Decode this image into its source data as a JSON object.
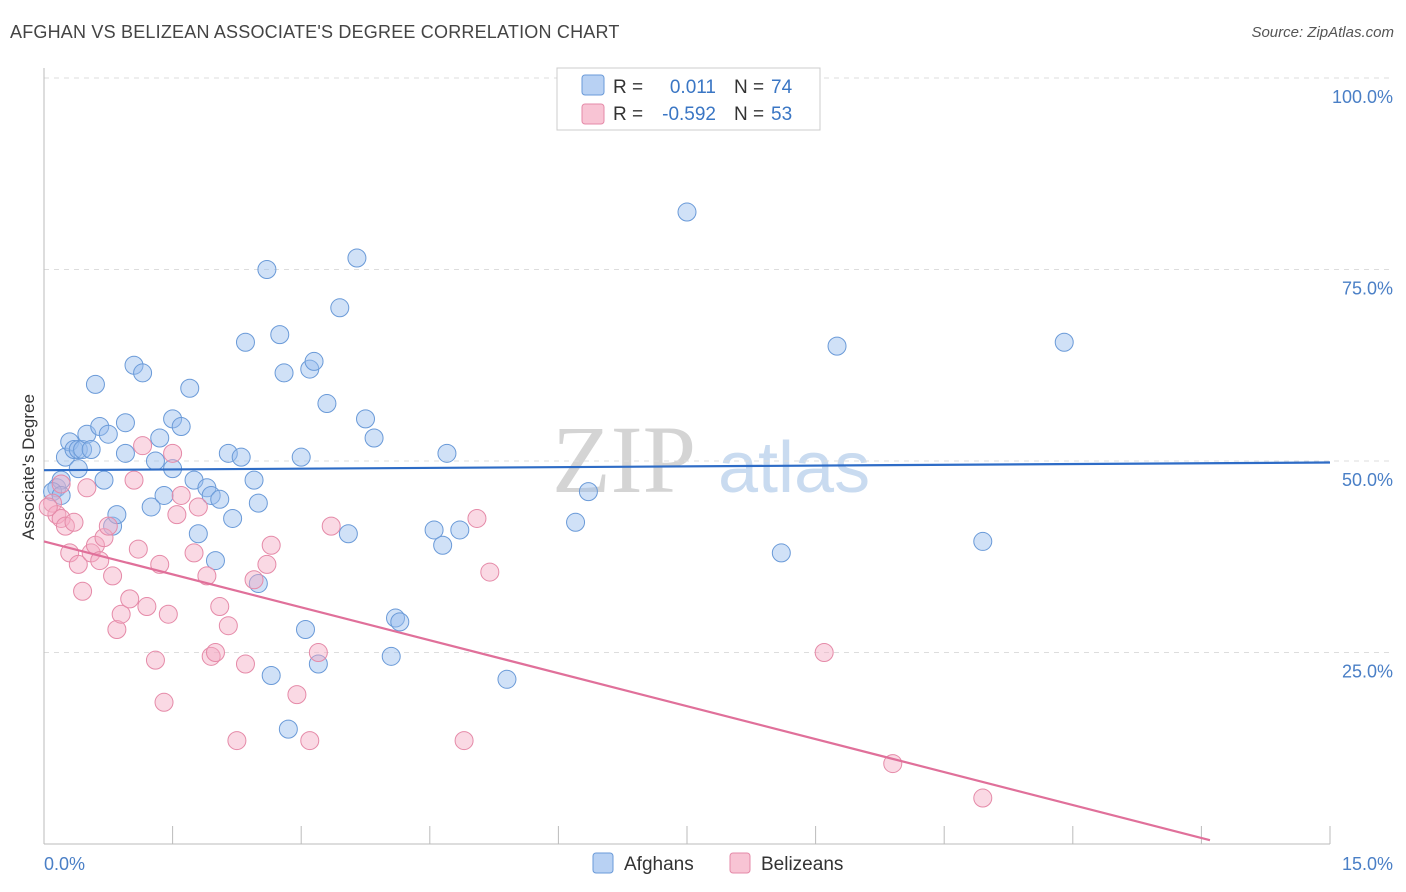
{
  "title": "AFGHAN VS BELIZEAN ASSOCIATE'S DEGREE CORRELATION CHART",
  "source": "Source: ZipAtlas.com",
  "watermark": {
    "part1": "ZIP",
    "part2": "atlas"
  },
  "legend_top": [
    {
      "r_label": "R =",
      "r_value": "0.011",
      "n_label": "N =",
      "n_value": "74",
      "fill": "#b8d1f3",
      "stroke": "#6a9ad8"
    },
    {
      "r_label": "R =",
      "r_value": "-0.592",
      "n_label": "N =",
      "n_value": "53",
      "fill": "#f8c4d4",
      "stroke": "#e58aa8"
    }
  ],
  "chart_data": {
    "type": "scatter",
    "title": "AFGHAN VS BELIZEAN ASSOCIATE'S DEGREE CORRELATION CHART",
    "xlabel": "",
    "ylabel": "Associate's Degree",
    "xlim": [
      0,
      15
    ],
    "ylim": [
      0,
      100
    ],
    "x_tick_labels": [
      {
        "value": 0,
        "label": "0.0%"
      },
      {
        "value": 15,
        "label": "15.0%"
      }
    ],
    "y_tick_labels": [
      {
        "value": 25,
        "label": "25.0%"
      },
      {
        "value": 50,
        "label": "50.0%"
      },
      {
        "value": 75,
        "label": "75.0%"
      },
      {
        "value": 100,
        "label": "100.0%"
      }
    ],
    "legend_position": "bottom-center",
    "series": [
      {
        "name": "Afghans",
        "color": "#6a9ad8",
        "fill": "rgba(150,188,238,0.45)",
        "trend": {
          "x": [
            0,
            15
          ],
          "y": [
            48.8,
            49.8
          ],
          "color": "#2e6cc6"
        },
        "points": [
          [
            0.15,
            46.5
          ],
          [
            0.2,
            47.5
          ],
          [
            0.25,
            50.5
          ],
          [
            0.3,
            52.5
          ],
          [
            0.35,
            51.5
          ],
          [
            0.4,
            49
          ],
          [
            0.4,
            51.5
          ],
          [
            0.45,
            51.5
          ],
          [
            0.5,
            53.5
          ],
          [
            0.55,
            51.5
          ],
          [
            0.6,
            60
          ],
          [
            0.65,
            54.5
          ],
          [
            0.7,
            47.5
          ],
          [
            0.75,
            53.5
          ],
          [
            0.8,
            41.5
          ],
          [
            0.85,
            43
          ],
          [
            0.95,
            55
          ],
          [
            0.95,
            51
          ],
          [
            1.05,
            62.5
          ],
          [
            1.15,
            61.5
          ],
          [
            1.25,
            44
          ],
          [
            1.3,
            50
          ],
          [
            1.35,
            53
          ],
          [
            1.4,
            45.5
          ],
          [
            1.5,
            49
          ],
          [
            1.5,
            55.5
          ],
          [
            1.6,
            54.5
          ],
          [
            1.7,
            59.5
          ],
          [
            1.75,
            47.5
          ],
          [
            1.8,
            40.5
          ],
          [
            1.9,
            46.5
          ],
          [
            1.95,
            45.5
          ],
          [
            2.0,
            37
          ],
          [
            2.05,
            45
          ],
          [
            2.15,
            51
          ],
          [
            2.2,
            42.5
          ],
          [
            2.3,
            50.5
          ],
          [
            2.35,
            65.5
          ],
          [
            2.45,
            47.5
          ],
          [
            2.5,
            44.5
          ],
          [
            2.5,
            34
          ],
          [
            2.6,
            75
          ],
          [
            2.65,
            22
          ],
          [
            2.75,
            66.5
          ],
          [
            2.8,
            61.5
          ],
          [
            2.85,
            15
          ],
          [
            3.0,
            50.5
          ],
          [
            3.05,
            28
          ],
          [
            3.1,
            62
          ],
          [
            3.15,
            63
          ],
          [
            3.2,
            23.5
          ],
          [
            3.3,
            57.5
          ],
          [
            3.45,
            70
          ],
          [
            3.55,
            40.5
          ],
          [
            3.65,
            76.5
          ],
          [
            3.75,
            55.5
          ],
          [
            3.85,
            53
          ],
          [
            4.05,
            24.5
          ],
          [
            4.1,
            29.5
          ],
          [
            4.15,
            29
          ],
          [
            4.55,
            41
          ],
          [
            4.65,
            39
          ],
          [
            4.7,
            51
          ],
          [
            4.85,
            41
          ],
          [
            5.4,
            21.5
          ],
          [
            6.2,
            42
          ],
          [
            6.35,
            46
          ],
          [
            7.5,
            82.5
          ],
          [
            8.6,
            38
          ],
          [
            9.25,
            65
          ],
          [
            10.95,
            39.5
          ],
          [
            11.9,
            65.5
          ],
          [
            0.1,
            46
          ],
          [
            0.2,
            45.5
          ]
        ]
      },
      {
        "name": "Belizeans",
        "color": "#e58aa8",
        "fill": "rgba(244,170,196,0.45)",
        "trend": {
          "x": [
            0,
            13.6
          ],
          "y": [
            39.5,
            0.5
          ],
          "color": "#e0709a"
        },
        "points": [
          [
            0.1,
            44.5
          ],
          [
            0.15,
            43
          ],
          [
            0.2,
            42.5
          ],
          [
            0.25,
            41.5
          ],
          [
            0.3,
            38
          ],
          [
            0.35,
            42
          ],
          [
            0.4,
            36.5
          ],
          [
            0.45,
            33
          ],
          [
            0.5,
            46.5
          ],
          [
            0.55,
            38
          ],
          [
            0.6,
            39
          ],
          [
            0.65,
            37
          ],
          [
            0.7,
            40
          ],
          [
            0.75,
            41.5
          ],
          [
            0.8,
            35
          ],
          [
            0.85,
            28
          ],
          [
            0.9,
            30
          ],
          [
            1.0,
            32
          ],
          [
            1.05,
            47.5
          ],
          [
            1.1,
            38.5
          ],
          [
            1.15,
            52
          ],
          [
            1.2,
            31
          ],
          [
            1.3,
            24
          ],
          [
            1.35,
            36.5
          ],
          [
            1.4,
            18.5
          ],
          [
            1.45,
            30
          ],
          [
            1.5,
            51
          ],
          [
            1.55,
            43
          ],
          [
            1.6,
            45.5
          ],
          [
            1.75,
            38
          ],
          [
            1.8,
            44
          ],
          [
            1.9,
            35
          ],
          [
            1.95,
            24.5
          ],
          [
            2.0,
            25
          ],
          [
            2.05,
            31
          ],
          [
            2.15,
            28.5
          ],
          [
            2.25,
            13.5
          ],
          [
            2.35,
            23.5
          ],
          [
            2.45,
            34.5
          ],
          [
            2.6,
            36.5
          ],
          [
            2.65,
            39
          ],
          [
            2.95,
            19.5
          ],
          [
            3.1,
            13.5
          ],
          [
            3.2,
            25
          ],
          [
            3.35,
            41.5
          ],
          [
            4.9,
            13.5
          ],
          [
            5.05,
            42.5
          ],
          [
            5.2,
            35.5
          ],
          [
            9.1,
            25
          ],
          [
            9.9,
            10.5
          ],
          [
            10.95,
            6
          ],
          [
            0.2,
            47
          ],
          [
            0.05,
            44
          ]
        ]
      }
    ]
  }
}
